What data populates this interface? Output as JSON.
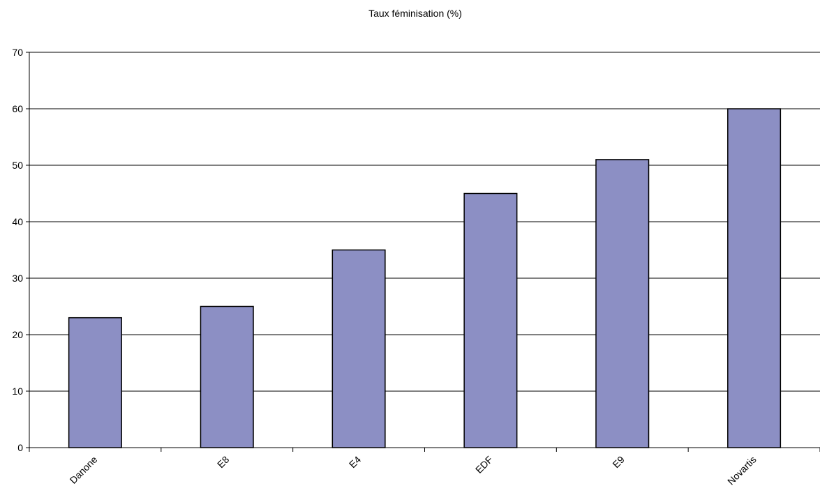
{
  "chart_data": {
    "type": "bar",
    "title": "Taux féminisation (%)",
    "xlabel": "",
    "ylabel": "",
    "categories": [
      "Danone",
      "E8",
      "E4",
      "EDF",
      "E9",
      "Novartis"
    ],
    "values": [
      23,
      25,
      35,
      45,
      51,
      60
    ],
    "ylim": [
      0,
      70
    ],
    "yticks": [
      0,
      10,
      20,
      30,
      40,
      50,
      60,
      70
    ],
    "grid": true,
    "legend": "none",
    "colors": {
      "bar_fill": "#8c8fc4",
      "bar_stroke": "#000000",
      "grid": "#000000",
      "axis": "#000000"
    }
  }
}
